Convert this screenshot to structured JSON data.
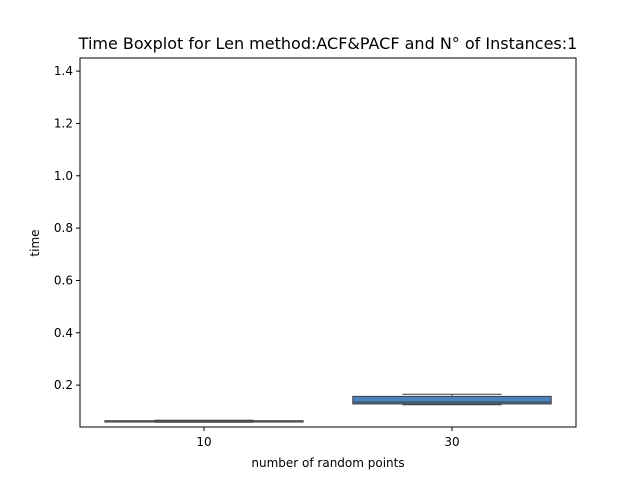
{
  "chart_data": {
    "type": "boxplot",
    "title": "Time Boxplot for Len method:ACF&PACF and N° of Instances:1",
    "xlabel": "number of random points",
    "ylabel": "time",
    "categories": [
      "10",
      "30"
    ],
    "boxes": [
      {
        "category": "10",
        "min": 0.058,
        "q1": 0.059,
        "median": 0.06,
        "q3": 0.064,
        "max": 0.066,
        "color": "#c6dbef"
      },
      {
        "category": "30",
        "min": 0.125,
        "q1": 0.128,
        "median": 0.135,
        "q3": 0.157,
        "max": 0.165,
        "color": "#4a84bb"
      }
    ],
    "ylim": [
      0.04,
      1.45
    ],
    "yticks": [
      0.2,
      0.4,
      0.6,
      0.8,
      1.0,
      1.2,
      1.4
    ],
    "ytick_labels": [
      "0.2",
      "0.4",
      "0.6",
      "0.8",
      "1.0",
      "1.2",
      "1.4"
    ],
    "grid": false,
    "legend": false
  }
}
